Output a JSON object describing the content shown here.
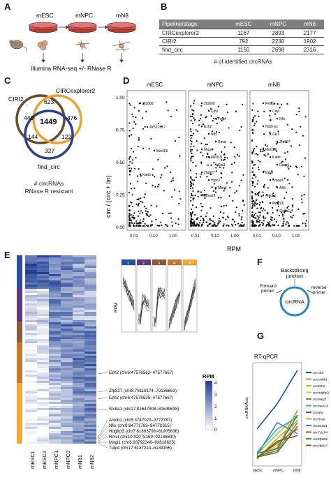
{
  "panels": {
    "A": "A",
    "B": "B",
    "C": "C",
    "D": "D",
    "E": "E",
    "F": "F",
    "G": "G"
  },
  "A": {
    "stages": [
      "mESC",
      "mNPC",
      "mN8"
    ],
    "bottom_text": "Illumina RNA-seq +/- RNase R"
  },
  "B": {
    "headers": [
      "Pipeline/stage",
      "mESC",
      "mNPC",
      "mN8"
    ],
    "rows": [
      {
        "name": "CIRCexplorer2",
        "values": [
          "1167",
          "2893",
          "2177"
        ]
      },
      {
        "name": "CIRI2",
        "values": [
          "792",
          "2230",
          "1902"
        ]
      },
      {
        "name": "find_circ",
        "values": [
          "1150",
          "2698",
          "2316"
        ]
      }
    ],
    "caption": "# of identified circRNAs"
  },
  "C": {
    "sets": [
      "CIRI2",
      "CIRCexplorer2",
      "find_circ"
    ],
    "counts": {
      "ciri_only": "440",
      "ciri_cx": "623",
      "cx_only": "476",
      "all": "1449",
      "ciri_fc": "144",
      "cx_fc": "122",
      "fc_only": "327"
    },
    "caption1": "# circRNAs",
    "caption2": "RNase R resistant",
    "colors": {
      "ciri": "#6b4a2b",
      "cx": "#f0a030",
      "fc": "#2b3f8c"
    }
  },
  "D": {
    "facets": [
      "mESC",
      "mNPC",
      "mN8"
    ],
    "ylabel": "circ / (circ + lin)",
    "xlabel": "RPM",
    "yticks": [
      "0.00",
      "0.25",
      "0.50",
      "0.75",
      "1.00"
    ],
    "xticks": [
      "0.01",
      "0.10",
      "1.00"
    ],
    "labels": {
      "mESC": [
        "Zfp609",
        "AY512917",
        "Med13l",
        "Kattb"
      ],
      "mNPC": [
        "Zfp609",
        "Cdyl",
        "Tulp4",
        "Ezh2",
        "Nfix",
        "Rmat",
        "Magi4",
        "Med13l",
        "Gls3",
        "Zfp827",
        "Hipk3",
        "Mbo3",
        "Mbost2"
      ],
      "mN8": [
        "Rmat",
        "Cdyl",
        "Nfix",
        "Nrp5-ps",
        "Gls3",
        "Zfp827",
        "Med13l",
        "Kattb",
        "Rasp1",
        "Ezh2",
        "Srpap1",
        "Aft3",
        "Ankib1",
        "Med13l",
        "Slc8a1"
      ]
    }
  },
  "E": {
    "columns": [
      "mESC1",
      "mESC2",
      "mNPC1",
      "mNPC2",
      "mN81",
      "mN82"
    ],
    "legend_title": "RPM",
    "legend_ticks": [
      "4",
      "3",
      "2",
      "1",
      "0"
    ],
    "cluster_labels": [
      "1",
      "2",
      "3",
      "4",
      "5"
    ],
    "mini_ylabel": "RPM",
    "gene_labels": [
      "Ezh2 (chr6:47576562–47577667)",
      "Zfp827 (chr8:79118174–79136663)",
      "Ezh2 (chr6:47576535–47577667)",
      "Slc8a1 (chr17:81647808–81649638)",
      "Ankib1 (chr5:3747020–3772787)",
      "Nfix (chr8:84771783–84772315)",
      "Hdgfrp3 (chr7:81893798–81905636)",
      "Rmst (chr10:92075169–92136690)",
      "Magi1 (chr6:93792346–93818625)",
      "Tulp4 (chr17:6137210–6139156)"
    ]
  },
  "F": {
    "title1": "Backsplicing",
    "title2": "junction",
    "forward1": "Forward",
    "forward2": "primer",
    "reverse1": "reverse",
    "reverse2": "primer",
    "center": "circRNA"
  },
  "G": {
    "title": "RT-qPCR",
    "ylabel": "circRNA/Actin",
    "categories": [
      "mESC",
      "mNPC",
      "mN8"
    ],
    "legend": [
      "circAft3",
      "circAnkib1",
      "circEzh2",
      "circHdgfrp3",
      "circMagi1",
      "circMed13l",
      "circNfix",
      "circRmst",
      "circSlc8a1",
      "circTULP4",
      "circZfp609",
      "circZfp827"
    ],
    "colors": [
      "#1f4e9c",
      "#e07b39",
      "#9acd32",
      "#e8c02a",
      "#6a8f3a",
      "#3fa7c9",
      "#7a5a3a",
      "#c9a227",
      "#4682b4",
      "#b05a2a",
      "#2e8b57",
      "#556b2f"
    ]
  }
}
